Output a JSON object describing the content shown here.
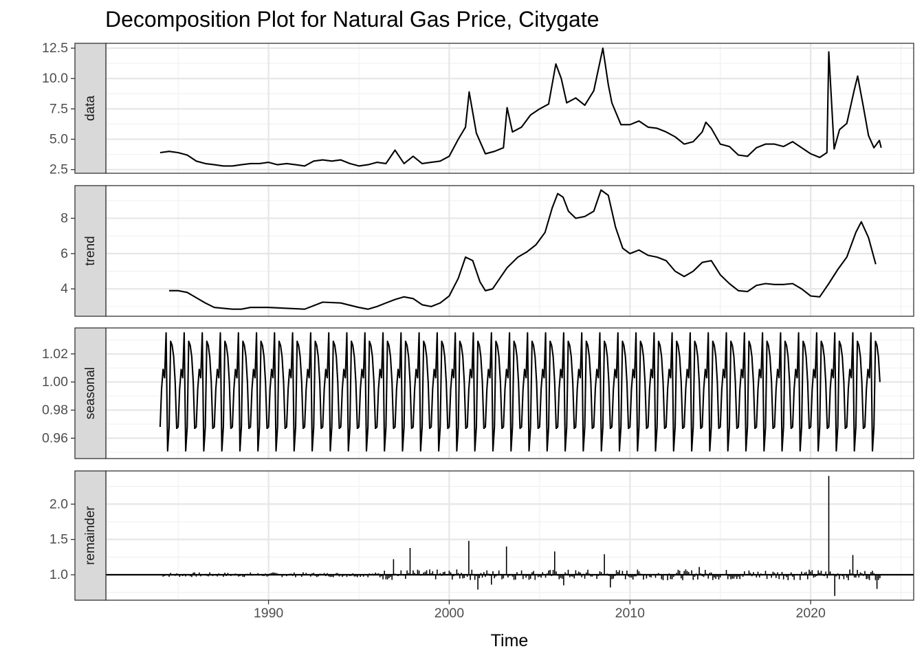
{
  "chart_data": {
    "type": "line",
    "title": "Decomposition Plot for Natural Gas Price, Citygate",
    "xlabel": "Time",
    "x_ticks": [
      1990,
      2000,
      2010,
      2020
    ],
    "xlim": [
      1981.0,
      2025.7
    ],
    "grid": true,
    "panels": [
      {
        "name": "data",
        "style": "line",
        "ylim": [
          2.2,
          12.9
        ],
        "y_ticks": [
          "2.5",
          "5.0",
          "7.5",
          "10.0",
          "12.5"
        ],
        "x": [
          1984.0,
          1984.5,
          1985.0,
          1985.5,
          1986.0,
          1986.5,
          1987.0,
          1987.5,
          1988.0,
          1988.5,
          1989.0,
          1989.5,
          1990.0,
          1990.5,
          1991.0,
          1991.5,
          1992.0,
          1992.5,
          1993.0,
          1993.5,
          1994.0,
          1994.5,
          1995.0,
          1995.5,
          1996.0,
          1996.5,
          1997.0,
          1997.5,
          1998.0,
          1998.5,
          1999.0,
          1999.5,
          2000.0,
          2000.5,
          2000.9,
          2001.1,
          2001.5,
          2002.0,
          2002.5,
          2003.0,
          2003.2,
          2003.5,
          2004.0,
          2004.5,
          2005.0,
          2005.5,
          2005.9,
          2006.2,
          2006.5,
          2007.0,
          2007.5,
          2008.0,
          2008.5,
          2008.8,
          2009.0,
          2009.5,
          2010.0,
          2010.5,
          2011.0,
          2011.5,
          2012.0,
          2012.5,
          2013.0,
          2013.5,
          2014.0,
          2014.2,
          2014.5,
          2015.0,
          2015.5,
          2016.0,
          2016.5,
          2017.0,
          2017.5,
          2018.0,
          2018.5,
          2019.0,
          2019.5,
          2020.0,
          2020.5,
          2020.9,
          2021.0,
          2021.3,
          2021.6,
          2022.0,
          2022.4,
          2022.6,
          2022.9,
          2023.2,
          2023.5,
          2023.8,
          2023.9
        ],
        "values": [
          3.9,
          4.0,
          3.9,
          3.7,
          3.2,
          3.0,
          2.9,
          2.8,
          2.8,
          2.9,
          3.0,
          3.0,
          3.1,
          2.9,
          3.0,
          2.9,
          2.8,
          3.2,
          3.3,
          3.2,
          3.3,
          3.0,
          2.8,
          2.9,
          3.1,
          3.0,
          4.1,
          3.0,
          3.6,
          3.0,
          3.1,
          3.2,
          3.6,
          5.0,
          6.0,
          8.9,
          5.5,
          3.8,
          4.0,
          4.3,
          7.6,
          5.6,
          6.0,
          7.0,
          7.5,
          7.9,
          11.2,
          10.0,
          8.0,
          8.4,
          7.8,
          9.0,
          12.5,
          9.5,
          8.0,
          6.2,
          6.2,
          6.5,
          6.0,
          5.9,
          5.6,
          5.2,
          4.6,
          4.8,
          5.6,
          6.4,
          5.9,
          4.6,
          4.4,
          3.7,
          3.6,
          4.3,
          4.6,
          4.6,
          4.4,
          4.8,
          4.3,
          3.8,
          3.5,
          3.9,
          12.2,
          4.2,
          5.8,
          6.3,
          9.0,
          10.2,
          7.8,
          5.3,
          4.3,
          4.9,
          4.3
        ]
      },
      {
        "name": "trend",
        "style": "line",
        "ylim": [
          2.45,
          9.85
        ],
        "y_ticks": [
          "4",
          "6",
          "8"
        ],
        "x": [
          1984.5,
          1985.0,
          1985.5,
          1986.0,
          1986.5,
          1987.0,
          1987.5,
          1988.0,
          1988.5,
          1989.0,
          1990.0,
          1991.0,
          1992.0,
          1993.0,
          1994.0,
          1995.0,
          1995.5,
          1996.0,
          1996.5,
          1997.0,
          1997.5,
          1998.0,
          1998.5,
          1999.0,
          1999.5,
          2000.0,
          2000.5,
          2000.9,
          2001.3,
          2001.7,
          2002.0,
          2002.4,
          2002.8,
          2003.2,
          2003.8,
          2004.3,
          2004.8,
          2005.3,
          2005.7,
          2006.0,
          2006.3,
          2006.6,
          2007.0,
          2007.5,
          2008.0,
          2008.4,
          2008.8,
          2009.2,
          2009.6,
          2010.0,
          2010.5,
          2011.0,
          2011.5,
          2012.0,
          2012.5,
          2013.0,
          2013.5,
          2014.0,
          2014.5,
          2015.0,
          2015.5,
          2016.0,
          2016.5,
          2017.0,
          2017.5,
          2018.0,
          2018.5,
          2019.0,
          2019.5,
          2020.0,
          2020.5,
          2021.0,
          2021.5,
          2022.0,
          2022.5,
          2022.8,
          2023.2,
          2023.6
        ],
        "values": [
          3.9,
          3.9,
          3.8,
          3.5,
          3.2,
          2.95,
          2.9,
          2.85,
          2.85,
          2.95,
          2.95,
          2.9,
          2.85,
          3.25,
          3.2,
          2.95,
          2.85,
          3.0,
          3.2,
          3.4,
          3.55,
          3.45,
          3.1,
          3.0,
          3.2,
          3.6,
          4.6,
          5.8,
          5.6,
          4.4,
          3.9,
          4.0,
          4.6,
          5.2,
          5.8,
          6.1,
          6.5,
          7.2,
          8.6,
          9.4,
          9.2,
          8.4,
          8.0,
          8.1,
          8.4,
          9.6,
          9.3,
          7.5,
          6.3,
          6.0,
          6.2,
          5.9,
          5.8,
          5.6,
          5.0,
          4.7,
          5.0,
          5.5,
          5.6,
          4.8,
          4.3,
          3.9,
          3.85,
          4.2,
          4.3,
          4.25,
          4.25,
          4.3,
          4.0,
          3.6,
          3.55,
          4.3,
          5.1,
          5.8,
          7.2,
          7.8,
          6.9,
          5.4
        ]
      },
      {
        "name": "seasonal",
        "style": "line",
        "ylim": [
          0.9455,
          1.0385
        ],
        "y_ticks": [
          "0.96",
          "0.98",
          "1.00",
          "1.02"
        ],
        "cycle_start": 1984.0,
        "cycle_end": 2023.9,
        "monthly_pattern": [
          0.968,
          0.995,
          1.009,
          1.003,
          1.035,
          0.951,
          0.968,
          1.029,
          1.026,
          1.018,
          1.0,
          0.967
        ]
      },
      {
        "name": "remainder",
        "style": "bar",
        "baseline": 1.0,
        "ylim": [
          0.64,
          2.47
        ],
        "y_ticks": [
          "1.0",
          "1.5",
          "2.0"
        ],
        "spikes": [
          {
            "x": 2021.0,
            "value": 2.4
          },
          {
            "x": 2001.1,
            "value": 1.48
          },
          {
            "x": 2003.2,
            "value": 1.4
          },
          {
            "x": 1997.8,
            "value": 1.38
          },
          {
            "x": 2005.8,
            "value": 1.33
          },
          {
            "x": 2008.6,
            "value": 1.29
          },
          {
            "x": 2022.3,
            "value": 1.28
          },
          {
            "x": 1996.9,
            "value": 1.22
          },
          {
            "x": 2013.8,
            "value": 1.11
          },
          {
            "x": 2021.3,
            "value": 0.7
          },
          {
            "x": 2023.7,
            "value": 0.8
          },
          {
            "x": 2001.6,
            "value": 0.79
          },
          {
            "x": 2008.9,
            "value": 0.82
          },
          {
            "x": 2006.3,
            "value": 0.85
          },
          {
            "x": 2002.3,
            "value": 0.86
          }
        ],
        "noise_amplitude": 0.035
      }
    ]
  }
}
